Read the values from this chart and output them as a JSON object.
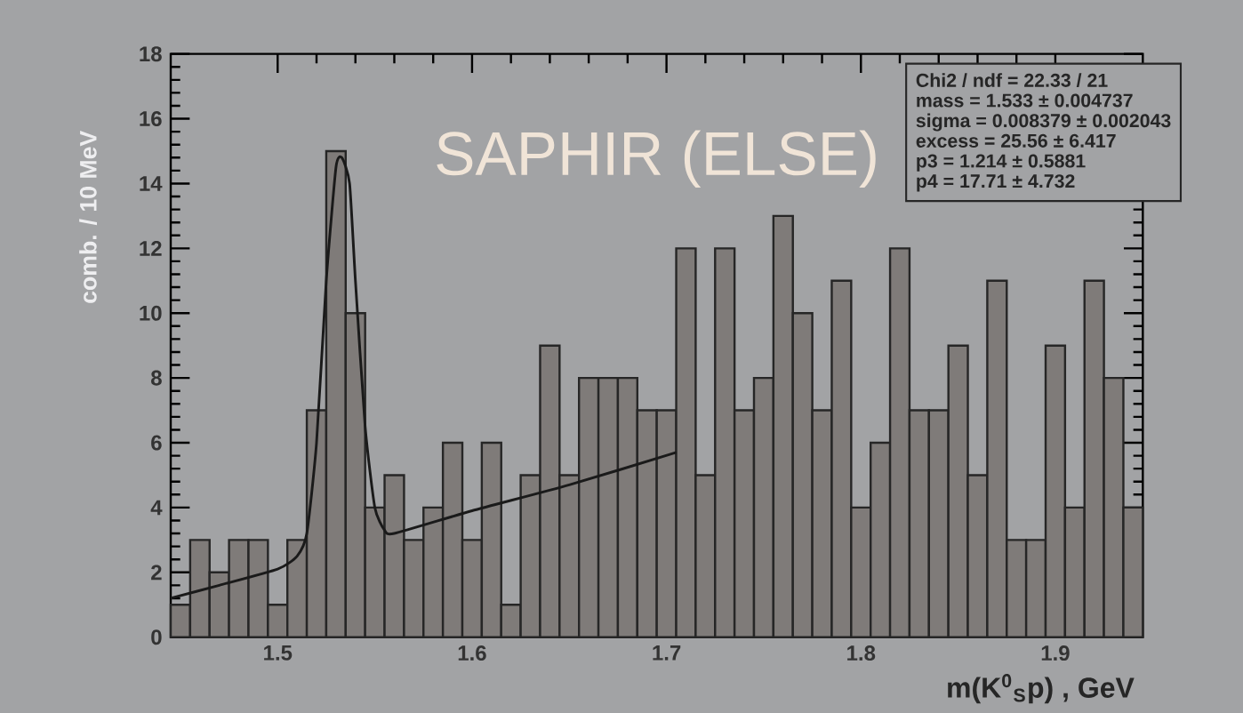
{
  "chart_data": {
    "type": "histogram",
    "xlabel": "m(K$^{0}$$_{S}$p) , GeV",
    "ylabel": "comb. / 10 MeV",
    "bins": [
      1.445,
      1.455,
      1.465,
      1.475,
      1.485,
      1.495,
      1.505,
      1.515,
      1.525,
      1.535,
      1.545,
      1.555,
      1.565,
      1.575,
      1.585,
      1.595,
      1.605,
      1.615,
      1.625,
      1.635,
      1.645,
      1.655,
      1.665,
      1.675,
      1.685,
      1.695,
      1.705,
      1.715,
      1.725,
      1.735,
      1.745,
      1.755,
      1.765,
      1.775,
      1.785,
      1.795,
      1.805,
      1.815,
      1.825,
      1.835,
      1.845,
      1.855,
      1.865,
      1.875,
      1.885,
      1.895,
      1.905,
      1.915,
      1.925,
      1.935,
      1.945
    ],
    "values": [
      1,
      3,
      2,
      3,
      3,
      1,
      3,
      7,
      15,
      10,
      4,
      5,
      3,
      4,
      6,
      3,
      6,
      1,
      5,
      9,
      5,
      8,
      8,
      8,
      7,
      7,
      12,
      5,
      12,
      7,
      8,
      13,
      10,
      7,
      11,
      4,
      6,
      12,
      7,
      7,
      9,
      5,
      11,
      3,
      3,
      9,
      4,
      11,
      8,
      4
    ],
    "color": "#7f7b79",
    "series": [
      {
        "type": "line",
        "color": "#1a1a1a",
        "x": [
          1.445,
          1.47,
          1.5,
          1.51,
          1.515,
          1.52,
          1.525,
          1.53,
          1.533,
          1.537,
          1.54,
          1.545,
          1.55,
          1.555,
          1.56,
          1.6,
          1.65,
          1.705
        ],
        "values": [
          1.2,
          1.6,
          2.1,
          2.5,
          3.2,
          6,
          11,
          14.5,
          14.8,
          14,
          11,
          6.5,
          4,
          3.3,
          3.2,
          3.9,
          4.7,
          5.7
        ]
      }
    ],
    "xlim": [
      1.445,
      1.945
    ],
    "ylim": [
      0,
      18
    ],
    "xticks": [
      1.5,
      1.6,
      1.7,
      1.8,
      1.9
    ],
    "yticks": [
      0,
      2,
      4,
      6,
      8,
      10,
      12,
      14,
      16,
      18
    ],
    "annotations": [
      "SAPHIR (ELSE)",
      "Chi2 / ndf = 22.33 / 21",
      "mass     = 1.533 ± 0.004737",
      "sigma   = 0.008379 ± 0.002043",
      "excess = 25.56 ± 6.417",
      "p3        = 1.214 ± 0.5881",
      "p4        = 17.71 ± 4.732"
    ],
    "grid": false
  }
}
